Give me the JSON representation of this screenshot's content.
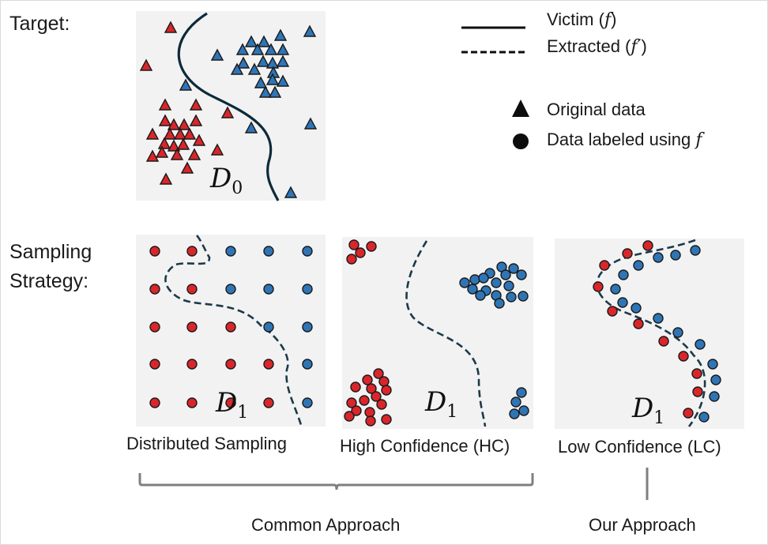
{
  "labels": {
    "target": "Target:",
    "sampling_line1": "Sampling",
    "sampling_line2": "Strategy:",
    "common": "Common Approach",
    "ours": "Our Approach"
  },
  "legend": {
    "victim_text": "Victim (",
    "victim_sym": "f",
    "victim_close": ")",
    "extracted_text": "Extracted (",
    "extracted_sym": "f′",
    "extracted_close": ")",
    "original": "Original data",
    "labeled_text": "Data labeled using ",
    "labeled_sym": "f"
  },
  "panels": {
    "target": {
      "name": "D",
      "sub": "0"
    },
    "distributed": {
      "name": "D",
      "sub": "1",
      "caption": "Distributed Sampling"
    },
    "hc": {
      "name": "D",
      "sub": "1",
      "caption": "High Confidence (HC)"
    },
    "lc": {
      "name": "D",
      "sub": "1",
      "caption": "Low Confidence (LC)"
    }
  },
  "colors": {
    "class_a": "#d9262b",
    "class_b": "#2e75b6",
    "panel_bg": "#f2f2f2",
    "bracket": "#7f7f7f",
    "boundary": "#0d2a3a"
  }
}
